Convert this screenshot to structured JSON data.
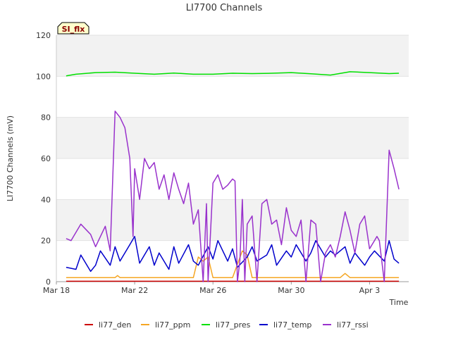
{
  "chart_data": {
    "type": "line",
    "title": "LI7700 Channels",
    "xlabel": "Time",
    "ylabel": "LI7700 Channels (mV)",
    "ylim": [
      0,
      120
    ],
    "yticks": [
      0,
      20,
      40,
      60,
      80,
      100,
      120
    ],
    "xlim": [
      "2024-03-18",
      "2024-04-05"
    ],
    "xticks": [
      {
        "date": "2024-03-18",
        "label": "Mar 18"
      },
      {
        "date": "2024-03-22",
        "label": "Mar 22"
      },
      {
        "date": "2024-03-26",
        "label": "Mar 26"
      },
      {
        "date": "2024-03-30",
        "label": "Mar 30"
      },
      {
        "date": "2024-04-03",
        "label": "Apr 3"
      }
    ],
    "badge": "SI_flx",
    "grid": "horizontal-bands",
    "legend_position": "bottom",
    "series": [
      {
        "name": "li77_den",
        "color": "#cc0000",
        "x": [
          "2024-03-18T12:00",
          "2024-04-04T12:00"
        ],
        "y": [
          0.2,
          0.2
        ]
      },
      {
        "name": "li77_ppm",
        "color": "#f5a623",
        "x": [
          "2024-03-18T12:00",
          "2024-03-20T00:00",
          "2024-03-21T00:00",
          "2024-03-21T03:00",
          "2024-03-21T06:00",
          "2024-03-23T00:00",
          "2024-03-25T00:00",
          "2024-03-25T06:00",
          "2024-03-25T12:00",
          "2024-03-25T18:00",
          "2024-03-26T00:00",
          "2024-03-27T00:00",
          "2024-03-27T12:00",
          "2024-03-27T18:00",
          "2024-03-28T00:00",
          "2024-03-28T06:00",
          "2024-03-29T00:00",
          "2024-03-31T00:00",
          "2024-04-01T00:00",
          "2024-04-01T12:00",
          "2024-04-01T18:00",
          "2024-04-02T00:00",
          "2024-04-03T00:00",
          "2024-04-04T12:00"
        ],
        "y": [
          2,
          2,
          2,
          3,
          2,
          2,
          2,
          12,
          10,
          12,
          2,
          2,
          15,
          13,
          2,
          2,
          2,
          2,
          2,
          2,
          4,
          2,
          2,
          2
        ]
      },
      {
        "name": "li77_pres",
        "color": "#00e000",
        "x": [
          "2024-03-18T12:00",
          "2024-03-19T00:00",
          "2024-03-20T00:00",
          "2024-03-21T00:00",
          "2024-03-22T00:00",
          "2024-03-23T00:00",
          "2024-03-24T00:00",
          "2024-03-25T00:00",
          "2024-03-26T00:00",
          "2024-03-27T00:00",
          "2024-03-28T00:00",
          "2024-03-29T00:00",
          "2024-03-30T00:00",
          "2024-03-31T00:00",
          "2024-04-01T00:00",
          "2024-04-02T00:00",
          "2024-04-03T00:00",
          "2024-04-04T00:00",
          "2024-04-04T12:00"
        ],
        "y": [
          100.2,
          101,
          101.8,
          102,
          101.5,
          101,
          101.6,
          101,
          101,
          101.5,
          101.3,
          101.5,
          101.8,
          101.2,
          100.6,
          102.2,
          101.8,
          101.3,
          101.5
        ]
      },
      {
        "name": "li77_temp",
        "color": "#0000cc",
        "x": [
          "2024-03-18T12:00",
          "2024-03-19T00:00",
          "2024-03-19T06:00",
          "2024-03-19T18:00",
          "2024-03-20T00:00",
          "2024-03-20T06:00",
          "2024-03-20T18:00",
          "2024-03-21T00:00",
          "2024-03-21T06:00",
          "2024-03-21T18:00",
          "2024-03-22T00:00",
          "2024-03-22T06:00",
          "2024-03-22T18:00",
          "2024-03-23T00:00",
          "2024-03-23T06:00",
          "2024-03-23T18:00",
          "2024-03-24T00:00",
          "2024-03-24T06:00",
          "2024-03-24T18:00",
          "2024-03-25T00:00",
          "2024-03-25T06:00",
          "2024-03-25T18:00",
          "2024-03-26T00:00",
          "2024-03-26T06:00",
          "2024-03-26T18:00",
          "2024-03-27T00:00",
          "2024-03-27T06:00",
          "2024-03-27T18:00",
          "2024-03-28T00:00",
          "2024-03-28T06:00",
          "2024-03-28T18:00",
          "2024-03-29T00:00",
          "2024-03-29T06:00",
          "2024-03-29T18:00",
          "2024-03-30T00:00",
          "2024-03-30T06:00",
          "2024-03-30T18:00",
          "2024-03-31T00:00",
          "2024-03-31T06:00",
          "2024-03-31T18:00",
          "2024-04-01T00:00",
          "2024-04-01T06:00",
          "2024-04-01T18:00",
          "2024-04-02T00:00",
          "2024-04-02T06:00",
          "2024-04-02T18:00",
          "2024-04-03T00:00",
          "2024-04-03T06:00",
          "2024-04-03T18:00",
          "2024-04-04T00:00",
          "2024-04-04T06:00",
          "2024-04-04T12:00"
        ],
        "y": [
          7,
          6,
          13,
          5,
          8,
          15,
          8,
          17,
          10,
          18,
          22,
          9,
          17,
          8,
          14,
          6,
          17,
          9,
          18,
          10,
          8,
          17,
          11,
          20,
          10,
          16,
          7,
          12,
          17,
          10,
          13,
          18,
          8,
          15,
          12,
          18,
          10,
          14,
          20,
          12,
          15,
          13,
          17,
          9,
          14,
          8,
          12,
          15,
          10,
          20,
          11,
          9
        ]
      },
      {
        "name": "li77_rssi",
        "color": "#9932cc",
        "x": [
          "2024-03-18T12:00",
          "2024-03-18T18:00",
          "2024-03-19T06:00",
          "2024-03-19T18:00",
          "2024-03-20T00:00",
          "2024-03-20T12:00",
          "2024-03-20T18:00",
          "2024-03-21T00:00",
          "2024-03-21T06:00",
          "2024-03-21T12:00",
          "2024-03-21T18:00",
          "2024-03-21T22:00",
          "2024-03-22T00:00",
          "2024-03-22T06:00",
          "2024-03-22T12:00",
          "2024-03-22T18:00",
          "2024-03-23T00:00",
          "2024-03-23T06:00",
          "2024-03-23T12:00",
          "2024-03-23T18:00",
          "2024-03-24T00:00",
          "2024-03-24T06:00",
          "2024-03-24T12:00",
          "2024-03-24T18:00",
          "2024-03-25T00:00",
          "2024-03-25T06:00",
          "2024-03-25T12:00",
          "2024-03-25T16:00",
          "2024-03-25T18:00",
          "2024-03-26T00:00",
          "2024-03-26T06:00",
          "2024-03-26T12:00",
          "2024-03-26T18:00",
          "2024-03-27T00:00",
          "2024-03-27T03:00",
          "2024-03-27T06:00",
          "2024-03-27T09:00",
          "2024-03-27T12:00",
          "2024-03-27T15:00",
          "2024-03-27T18:00",
          "2024-03-28T00:00",
          "2024-03-28T06:00",
          "2024-03-28T12:00",
          "2024-03-28T18:00",
          "2024-03-29T00:00",
          "2024-03-29T06:00",
          "2024-03-29T12:00",
          "2024-03-29T18:00",
          "2024-03-30T00:00",
          "2024-03-30T06:00",
          "2024-03-30T12:00",
          "2024-03-30T18:00",
          "2024-03-31T00:00",
          "2024-03-31T06:00",
          "2024-03-31T12:00",
          "2024-03-31T18:00",
          "2024-04-01T00:00",
          "2024-04-01T06:00",
          "2024-04-01T12:00",
          "2024-04-01T18:00",
          "2024-04-02T00:00",
          "2024-04-02T06:00",
          "2024-04-02T12:00",
          "2024-04-02T18:00",
          "2024-04-03T00:00",
          "2024-04-03T06:00",
          "2024-04-03T09:00",
          "2024-04-03T12:00",
          "2024-04-03T18:00",
          "2024-04-04T00:00",
          "2024-04-04T06:00",
          "2024-04-04T12:00"
        ],
        "y": [
          21,
          20,
          28,
          23,
          17,
          27,
          15,
          83,
          80,
          75,
          60,
          22,
          55,
          40,
          60,
          55,
          58,
          45,
          52,
          40,
          53,
          45,
          38,
          48,
          28,
          35,
          0,
          38,
          0,
          48,
          52,
          45,
          47,
          50,
          49,
          0,
          10,
          40,
          0,
          28,
          32,
          0,
          38,
          40,
          28,
          30,
          18,
          36,
          25,
          22,
          30,
          0,
          30,
          28,
          0,
          14,
          18,
          12,
          22,
          34,
          25,
          14,
          28,
          32,
          16,
          20,
          22,
          20,
          0,
          64,
          55,
          45
        ]
      }
    ]
  }
}
